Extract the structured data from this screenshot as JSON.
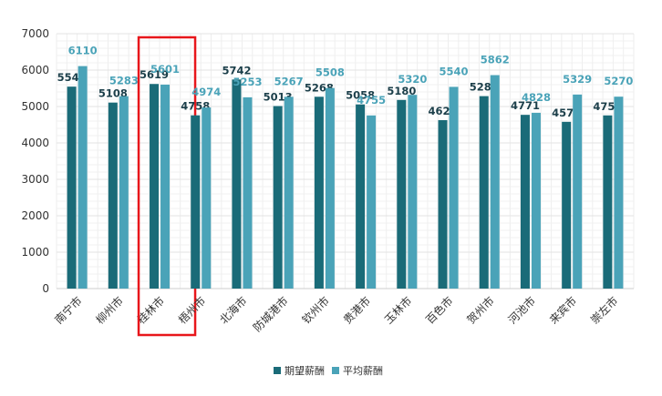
{
  "chart_data": {
    "type": "bar",
    "categories": [
      "南宁市",
      "柳州市",
      "桂林市",
      "梧州市",
      "北海市",
      "防城港市",
      "钦州市",
      "贵港市",
      "玉林市",
      "百色市",
      "贺州市",
      "河池市",
      "来宾市",
      "崇左市"
    ],
    "series": [
      {
        "name": "期望薪酬",
        "color": "#1a6b78",
        "values": [
          5546,
          5108,
          5619,
          4758,
          5742,
          5013,
          5268,
          5058,
          5180,
          4626,
          5285,
          4771,
          4579,
          4756
        ]
      },
      {
        "name": "平均薪酬",
        "color": "#4aa3b8",
        "values": [
          6110,
          5283,
          5601,
          4974,
          5253,
          5267,
          5508,
          4755,
          5320,
          5540,
          5862,
          4828,
          5329,
          5270
        ]
      }
    ],
    "ylim": [
      0,
      7000
    ],
    "yticks": [
      0,
      1000,
      2000,
      3000,
      4000,
      5000,
      6000,
      7000
    ],
    "grid": true,
    "legend_position": "bottom-center",
    "highlight_category": "桂林市",
    "highlight_color": "#e8161b",
    "label_colors": {
      "dark": "#1c3f4a",
      "light": "#4aa3b8"
    },
    "axis_text_color": "#333333"
  }
}
